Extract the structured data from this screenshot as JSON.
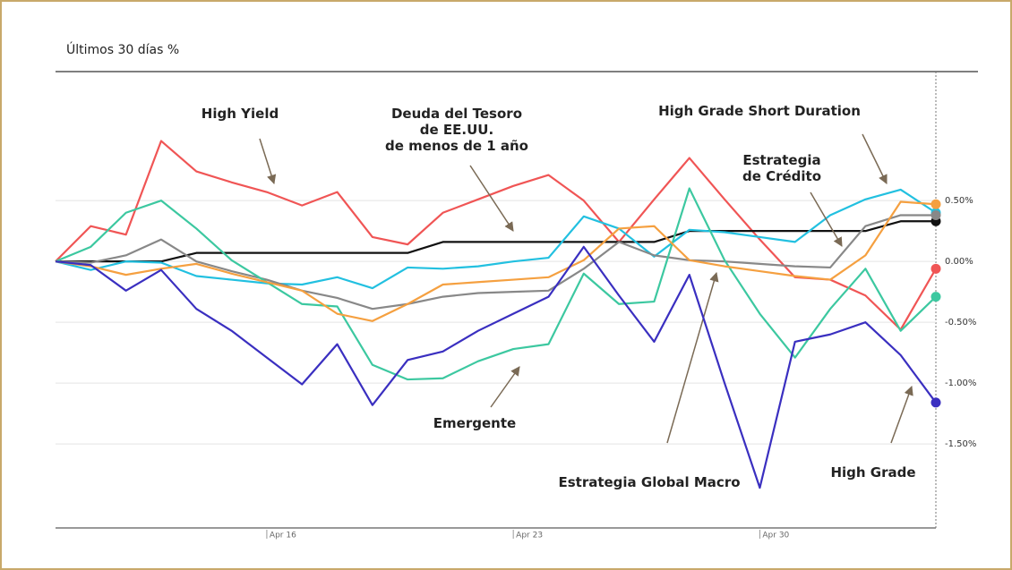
{
  "chart_data": {
    "type": "line",
    "title": "Últimos 30 días %",
    "categories": [
      null,
      null,
      null,
      null,
      null,
      null,
      "Apr 16",
      null,
      null,
      null,
      null,
      null,
      null,
      "Apr 23",
      null,
      null,
      null,
      null,
      null,
      null,
      "Apr 30",
      null,
      null,
      null,
      null,
      null
    ],
    "ylim": [
      -2.19,
      1.56
    ],
    "yticks": [
      {
        "value": 0.5,
        "label": "0.50%"
      },
      {
        "value": 0,
        "label": "0.00%"
      },
      {
        "value": -0.5,
        "label": "-0.50%"
      },
      {
        "value": -1,
        "label": "-1.00%"
      },
      {
        "value": -1.5,
        "label": "-1.50%"
      }
    ],
    "grid": true,
    "series": [
      {
        "name": "High Yield",
        "color": "#f05555",
        "values": [
          0,
          0.29,
          0.22,
          0.99,
          0.74,
          0.65,
          0.57,
          0.46,
          0.57,
          0.2,
          0.14,
          0.4,
          0.51,
          0.62,
          0.71,
          0.5,
          0.16,
          0.51,
          0.85,
          0.51,
          0.18,
          -0.13,
          -0.15,
          -0.28,
          -0.56,
          -0.06
        ]
      },
      {
        "name": "Deuda del Tesoro\nde EE.UU.\nde menos de 1 año",
        "color": "#111111",
        "values": [
          0,
          0,
          0,
          0,
          0.07,
          0.07,
          0.07,
          0.07,
          0.07,
          0.07,
          0.07,
          0.16,
          0.16,
          0.16,
          0.16,
          0.16,
          0.16,
          0.16,
          0.25,
          0.25,
          0.25,
          0.25,
          0.25,
          0.25,
          0.33,
          0.33
        ]
      },
      {
        "name": "High Grade Short Duration",
        "color": "#22c0e0",
        "values": [
          0,
          -0.07,
          0,
          -0.01,
          -0.12,
          -0.15,
          -0.18,
          -0.19,
          -0.13,
          -0.22,
          -0.05,
          -0.06,
          -0.04,
          0,
          0.03,
          0.37,
          0.27,
          0.04,
          0.26,
          0.24,
          0.2,
          0.16,
          0.38,
          0.51,
          0.59,
          0.4
        ]
      },
      {
        "name": "Estrategia\nde Crédito",
        "color": "#888888",
        "values": [
          0,
          -0.01,
          0.05,
          0.18,
          0,
          -0.08,
          -0.15,
          -0.24,
          -0.3,
          -0.39,
          -0.35,
          -0.29,
          -0.26,
          -0.25,
          -0.24,
          -0.06,
          0.16,
          0.05,
          0.01,
          0,
          -0.02,
          -0.04,
          -0.05,
          0.29,
          0.38,
          0.38
        ]
      },
      {
        "name": "Emergente",
        "color": "#3cc8a0",
        "values": [
          0,
          0.12,
          0.4,
          0.5,
          0.27,
          0.01,
          -0.17,
          -0.35,
          -0.37,
          -0.85,
          -0.97,
          -0.96,
          -0.82,
          -0.72,
          -0.68,
          -0.1,
          -0.35,
          -0.33,
          0.6,
          0.01,
          -0.43,
          -0.79,
          -0.39,
          -0.06,
          -0.57,
          -0.29
        ]
      },
      {
        "name": "Estrategia Global Macro",
        "color": "#f5a040",
        "values": [
          0,
          -0.04,
          -0.11,
          -0.06,
          -0.02,
          -0.1,
          -0.17,
          -0.24,
          -0.43,
          -0.49,
          -0.35,
          -0.19,
          -0.17,
          -0.15,
          -0.13,
          0.01,
          0.27,
          0.29,
          0.01,
          -0.04,
          -0.08,
          -0.12,
          -0.15,
          0.05,
          0.49,
          0.47
        ]
      },
      {
        "name": "High Grade",
        "color": "#3a2fc0",
        "values": [
          0,
          -0.03,
          -0.24,
          -0.07,
          -0.39,
          -0.57,
          -0.79,
          -1.01,
          -0.68,
          -1.18,
          -0.81,
          -0.74,
          -0.57,
          -0.43,
          -0.29,
          0.12,
          -0.28,
          -0.66,
          -0.11,
          -1.0,
          -1.86,
          -0.66,
          -0.6,
          -0.5,
          -0.77,
          -1.16
        ]
      }
    ]
  }
}
